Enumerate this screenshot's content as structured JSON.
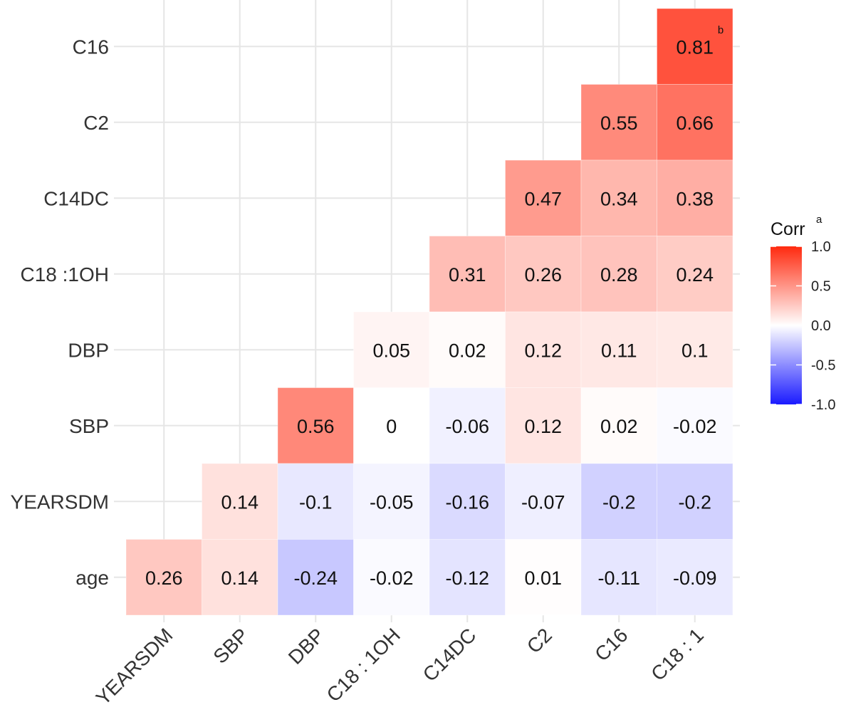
{
  "chart_data": {
    "type": "heatmap",
    "title": "",
    "xlabel": "",
    "ylabel": "",
    "x_categories": [
      "YEARSDM",
      "SBP",
      "DBP",
      "C18 : 1OH",
      "C14DC",
      "C2",
      "C16",
      "C18 : 1"
    ],
    "y_categories": [
      "C16",
      "C2",
      "C14DC",
      "C18 :1OH",
      "DBP",
      "SBP",
      "YEARSDM",
      "age"
    ],
    "matrix": [
      [
        null,
        null,
        null,
        null,
        null,
        null,
        null,
        0.81
      ],
      [
        null,
        null,
        null,
        null,
        null,
        null,
        0.55,
        0.66
      ],
      [
        null,
        null,
        null,
        null,
        null,
        0.47,
        0.34,
        0.38
      ],
      [
        null,
        null,
        null,
        null,
        0.31,
        0.26,
        0.28,
        0.24
      ],
      [
        null,
        null,
        null,
        0.05,
        0.02,
        0.12,
        0.11,
        0.1
      ],
      [
        null,
        null,
        0.56,
        0,
        -0.06,
        0.12,
        0.02,
        -0.02
      ],
      [
        null,
        0.14,
        -0.1,
        -0.05,
        -0.16,
        -0.07,
        -0.2,
        -0.2
      ],
      [
        0.26,
        0.14,
        -0.24,
        -0.02,
        -0.12,
        0.01,
        -0.11,
        -0.09
      ]
    ],
    "value_range": [
      -1.0,
      1.0
    ],
    "annotation": {
      "text": "b",
      "row": 0,
      "col": 7
    },
    "legend": {
      "title": "Corr",
      "title_superscript": "a",
      "ticks": [
        "1.0",
        "0.5",
        "0.0",
        "-0.5",
        "-1.0"
      ],
      "tick_values": [
        1.0,
        0.5,
        0.0,
        -0.5,
        -1.0
      ],
      "position": "right"
    },
    "colors": {
      "high": "#ff2a0f",
      "mid": "#ffffff",
      "low": "#1a1aff",
      "grid": "#e6e6e6"
    }
  }
}
